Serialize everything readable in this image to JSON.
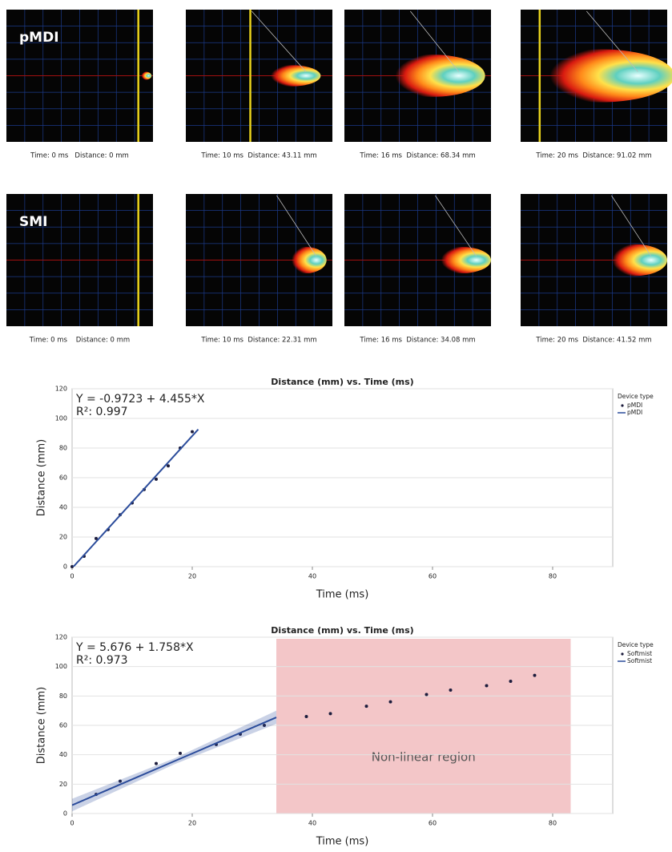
{
  "panels": {
    "rows": [
      {
        "label": "pMDI",
        "captions": [
          "Time: 0 ms   Distance: 0 mm",
          "Time: 10 ms  Distance: 43.11 mm",
          "Time: 16 ms  Distance: 68.34 mm",
          "Time: 20 ms  Distance: 91.02 mm"
        ]
      },
      {
        "label": "SMI",
        "captions": [
          "Time: 0 ms    Distance: 0 mm",
          "Time: 10 ms  Distance: 22.31 mm",
          "Time: 16 ms  Distance: 34.08 mm",
          "Time: 20 ms  Distance: 41.52 mm"
        ]
      }
    ]
  },
  "chart_data": [
    {
      "type": "scatter",
      "title": "Distance (mm) vs. Time (ms)",
      "x_label": "Time (ms)",
      "y_label": "Distance (mm)",
      "annotations": [
        "Y = -0.9723 + 4.455*X",
        "R²: 0.997"
      ],
      "legend_title": "Device type",
      "legend": "right",
      "xlim": [
        0,
        90
      ],
      "xticks": [
        0,
        20,
        40,
        60,
        80
      ],
      "ylim": [
        0,
        120
      ],
      "yticks": [
        0,
        20,
        40,
        60,
        80,
        100,
        120
      ],
      "grid": true,
      "series": [
        {
          "name": "pMDI",
          "mode": "markers",
          "color": "#1c1c3c",
          "x": [
            0,
            2,
            4,
            6,
            8,
            10,
            12,
            14,
            16,
            18,
            20
          ],
          "values": [
            0,
            7,
            19,
            25,
            35,
            43,
            52,
            59,
            68,
            80,
            91
          ]
        },
        {
          "name": "pMDI",
          "mode": "line",
          "color": "#2b4c9b",
          "x": [
            0,
            21
          ],
          "values": [
            -1,
            92.6
          ]
        }
      ]
    },
    {
      "type": "scatter",
      "title": "Distance (mm) vs. Time (ms)",
      "x_label": "Time (ms)",
      "y_label": "Distance (mm)",
      "annotations": [
        "Y = 5.676 + 1.758*X",
        "R²: 0.973"
      ],
      "legend_title": "Device type",
      "legend": "right",
      "xlim": [
        0,
        90
      ],
      "xticks": [
        0,
        20,
        40,
        60,
        80
      ],
      "ylim": [
        0,
        120
      ],
      "yticks": [
        0,
        20,
        40,
        60,
        80,
        100,
        120
      ],
      "grid": true,
      "region": {
        "x": [
          34,
          83
        ],
        "label": "Non-linear region",
        "color": "#f3c6c8"
      },
      "series": [
        {
          "name": "Softmist",
          "mode": "markers",
          "color": "#1c1c3c",
          "x": [
            4,
            8,
            14,
            18,
            24,
            28,
            32,
            39,
            43,
            49,
            53,
            59,
            63,
            69,
            73,
            77
          ],
          "values": [
            13,
            22,
            34,
            41,
            47,
            54,
            60,
            66,
            68,
            73,
            76,
            81,
            84,
            87,
            90,
            94
          ]
        },
        {
          "name": "Softmist",
          "mode": "line",
          "color": "#2b4c9b",
          "x": [
            0,
            17,
            34
          ],
          "values": [
            5.7,
            35.6,
            65.4
          ],
          "ci_lower": [
            1.5,
            33.5,
            61
          ],
          "ci_upper": [
            10,
            37.5,
            70
          ]
        }
      ]
    }
  ]
}
